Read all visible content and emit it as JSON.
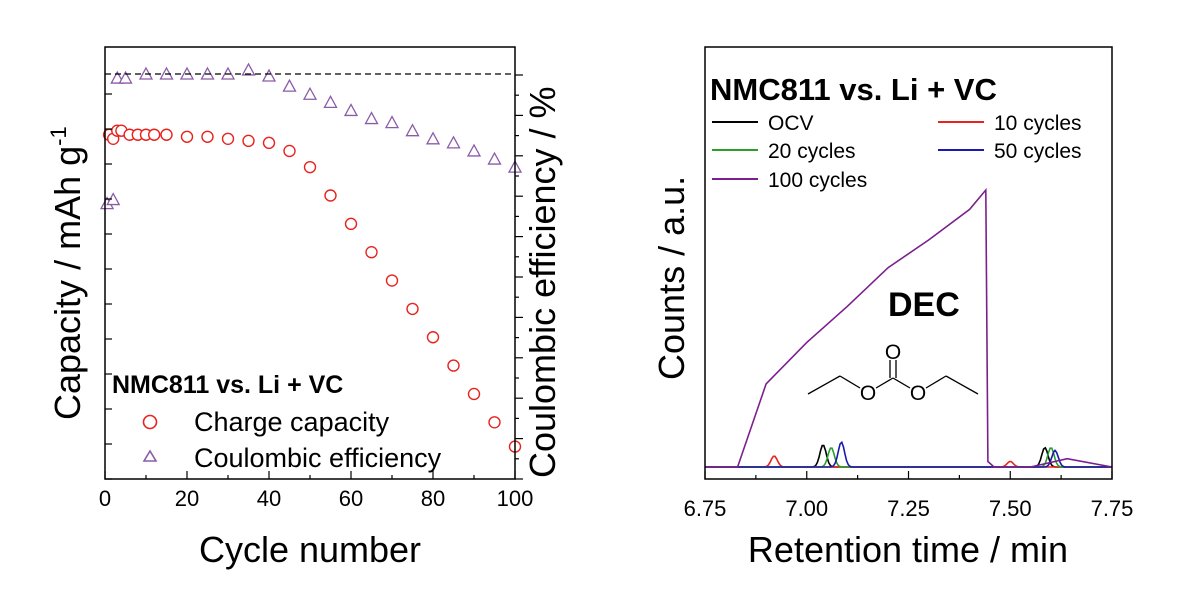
{
  "chart_data": [
    {
      "type": "scatter",
      "title": "NMC811 vs. Li + VC",
      "xlabel": "Cycle number",
      "ylabel_main": "Capacity / mAh g",
      "ylabel_sup": "-1",
      "ylabel_right": "Coulombic efficiency / %",
      "xlim": [
        0,
        100
      ],
      "xticks": [
        "0",
        "20",
        "40",
        "60",
        "80",
        "100"
      ],
      "ylim_left": [
        0,
        100
      ],
      "ylim_right": [
        0,
        100
      ],
      "reference_line": 100,
      "legend": [
        "Charge capacity",
        "Coulombic efficiency"
      ],
      "series": [
        {
          "name": "Charge capacity",
          "color": "#e8231e",
          "marker": "circle",
          "x": [
            1,
            2,
            3,
            4,
            6,
            8,
            10,
            12,
            15,
            20,
            25,
            30,
            35,
            40,
            45,
            50,
            55,
            60,
            65,
            70,
            75,
            80,
            85,
            90,
            95,
            100
          ],
          "y": [
            85,
            84,
            86,
            86,
            85,
            85,
            85,
            85,
            85,
            84.5,
            84.5,
            84,
            83.5,
            83,
            81,
            77,
            70,
            63,
            56,
            49,
            42,
            35,
            28,
            21,
            14,
            8
          ]
        },
        {
          "name": "Coulombic efficiency",
          "color": "#8a5ca8",
          "marker": "triangle",
          "x": [
            0.5,
            2,
            3,
            5,
            10,
            15,
            20,
            25,
            30,
            35,
            40,
            45,
            50,
            55,
            60,
            65,
            70,
            75,
            80,
            85,
            90,
            95,
            100
          ],
          "y": [
            68,
            69,
            99,
            99,
            100,
            100,
            100,
            100,
            100,
            101,
            99.5,
            97,
            95,
            93,
            91,
            89,
            88,
            86,
            84,
            83,
            81,
            79,
            77
          ]
        }
      ]
    },
    {
      "type": "line",
      "title": "NMC811 vs. Li + VC",
      "xlabel": "Retention time / min",
      "ylabel": "Counts / a.u.",
      "xlim": [
        6.75,
        7.75
      ],
      "xticks": [
        "6.75",
        "7.00",
        "7.25",
        "7.50",
        "7.75"
      ],
      "annotation": "DEC",
      "molecule_labels": [
        "O",
        "O",
        "O"
      ],
      "legend": [
        "OCV",
        "10 cycles",
        "20 cycles",
        "50 cycles",
        "100 cycles"
      ],
      "series": [
        {
          "name": "OCV",
          "color": "#000000",
          "peaks": [
            [
              7.04,
              0.08
            ],
            [
              7.585,
              0.07
            ]
          ]
        },
        {
          "name": "10 cycles",
          "color": "#e8231e",
          "peaks": [
            [
              6.92,
              0.04
            ],
            [
              7.5,
              0.02
            ]
          ]
        },
        {
          "name": "20 cycles",
          "color": "#2aa02a",
          "peaks": [
            [
              7.06,
              0.07
            ],
            [
              7.6,
              0.07
            ]
          ]
        },
        {
          "name": "50 cycles",
          "color": "#1a1ab0",
          "peaks": [
            [
              7.085,
              0.09
            ],
            [
              7.61,
              0.06
            ]
          ]
        },
        {
          "name": "100 cycles",
          "color": "#7b1f8e",
          "x": [
            6.75,
            6.83,
            6.9,
            7.0,
            7.1,
            7.2,
            7.3,
            7.4,
            7.44,
            7.445,
            7.46,
            7.55,
            7.64,
            7.75
          ],
          "y": [
            0,
            0,
            0.3,
            0.45,
            0.58,
            0.72,
            0.82,
            0.93,
            1.0,
            0.02,
            0.0,
            0.0,
            0.03,
            0.0
          ]
        }
      ]
    }
  ]
}
